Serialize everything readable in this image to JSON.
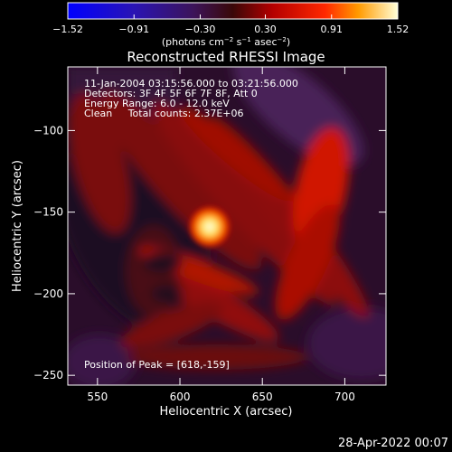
{
  "chart_data": {
    "type": "heatmap",
    "title": "Reconstructed RHESSI Image",
    "xlabel": "Heliocentric X (arcsec)",
    "ylabel": "Heliocentric Y (arcsec)",
    "xlim": [
      532,
      725
    ],
    "ylim": [
      -256,
      -61
    ],
    "xticks": [
      550,
      600,
      650,
      700
    ],
    "yticks": [
      -100,
      -150,
      -200,
      -250
    ],
    "xtick_labels": [
      "550",
      "600",
      "650",
      "700"
    ],
    "ytick_labels": [
      "−100",
      "−150",
      "−200",
      "−250"
    ],
    "colorbar": {
      "range": [
        -1.52,
        1.52
      ],
      "ticks": [
        -1.52,
        -0.91,
        -0.3,
        0.3,
        0.91,
        1.52
      ],
      "tick_labels": [
        "−1.52",
        "−0.91",
        "−0.30",
        "0.30",
        "0.91",
        "1.52"
      ],
      "unit_main": "(photons cm",
      "unit_exp1": "−2",
      "unit_mid": " s",
      "unit_exp2": "−1",
      "unit_mid2": " asec",
      "unit_exp3": "−2",
      "unit_end": ")"
    },
    "peak": {
      "x": 618,
      "y": -159,
      "value": 1.52
    },
    "annotations": {
      "line1": "11-Jan-2004 03:15:56.000 to 03:21:56.000",
      "line2": "Detectors: 3F 4F 5F 6F 7F 8F, Att 0",
      "line3": "Energy Range: 6.0 - 12.0 keV",
      "line4": "Clean     Total counts: 2.37E+06",
      "peak_label": "Position of Peak = [618,-159]"
    },
    "timestamp": "28-Apr-2022 00:07"
  }
}
